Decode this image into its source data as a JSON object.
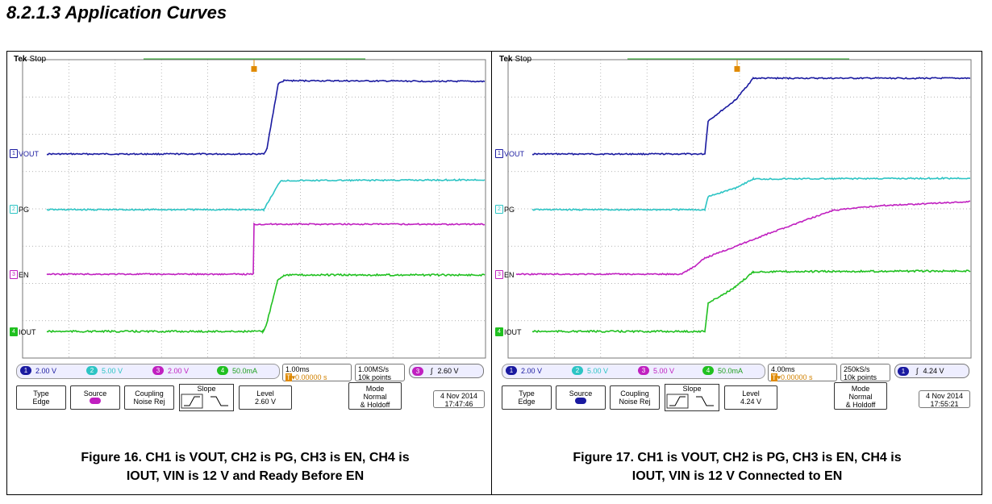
{
  "heading": "8.2.1.3 Application Curves",
  "colors": {
    "ch1": "#1a1aa0",
    "ch2": "#2cc4c4",
    "ch3": "#c020c0",
    "ch4": "#20c020",
    "trigger": "#e08a00"
  },
  "scopes": [
    {
      "brand": "Tek",
      "state": "Stop",
      "channels": [
        {
          "num": "1",
          "name": "VOUT"
        },
        {
          "num": "2",
          "name": "PG"
        },
        {
          "num": "3",
          "name": "EN"
        },
        {
          "num": "4",
          "name": "IOUT"
        }
      ],
      "scales": [
        "2.00 V",
        "5.00 V",
        "2.00 V",
        "50.0mA"
      ],
      "timebase": "1.00ms",
      "trigger_pos": "▾0.00000 s",
      "sample_rate": "1.00MS/s",
      "record_length": "10k points",
      "trigger_channel": "3",
      "trigger_level": "2.60 V",
      "menu": {
        "type_title": "Type",
        "type_value": "Edge",
        "source_title": "Source",
        "coupling_title": "Coupling",
        "coupling_value": "Noise Rej",
        "slope_title": "Slope",
        "level_title": "Level",
        "level_value": "2.60 V",
        "mode_title": "Mode",
        "mode_value1": "Normal",
        "mode_value2": "& Holdoff"
      },
      "date": "4 Nov 2014",
      "time": "17:47:46",
      "caption_line1": "Figure 16. CH1 is VOUT, CH2 is PG, CH3 is EN, CH4 is",
      "caption_line2": "IOUT, VIN is 12 V and Ready Before EN"
    },
    {
      "brand": "Tek",
      "state": "Stop",
      "channels": [
        {
          "num": "1",
          "name": "VOUT"
        },
        {
          "num": "2",
          "name": "PG"
        },
        {
          "num": "3",
          "name": "EN"
        },
        {
          "num": "4",
          "name": "IOUT"
        }
      ],
      "scales": [
        "2.00 V",
        "5.00 V",
        "5.00 V",
        "50.0mA"
      ],
      "timebase": "4.00ms",
      "trigger_pos": "▾0.00000 s",
      "sample_rate": "250kS/s",
      "record_length": "10k points",
      "trigger_channel": "1",
      "trigger_level": "4.24 V",
      "menu": {
        "type_title": "Type",
        "type_value": "Edge",
        "source_title": "Source",
        "coupling_title": "Coupling",
        "coupling_value": "Noise Rej",
        "slope_title": "Slope",
        "level_title": "Level",
        "level_value": "4.24 V",
        "mode_title": "Mode",
        "mode_value1": "Normal",
        "mode_value2": "& Holdoff"
      },
      "date": "4 Nov 2014",
      "time": "17:55:21",
      "caption_line1": "Figure 17. CH1 is VOUT, CH2 is PG, CH3 is EN, CH4 is",
      "caption_line2": "IOUT, VIN is 12 V Connected to EN"
    }
  ]
}
